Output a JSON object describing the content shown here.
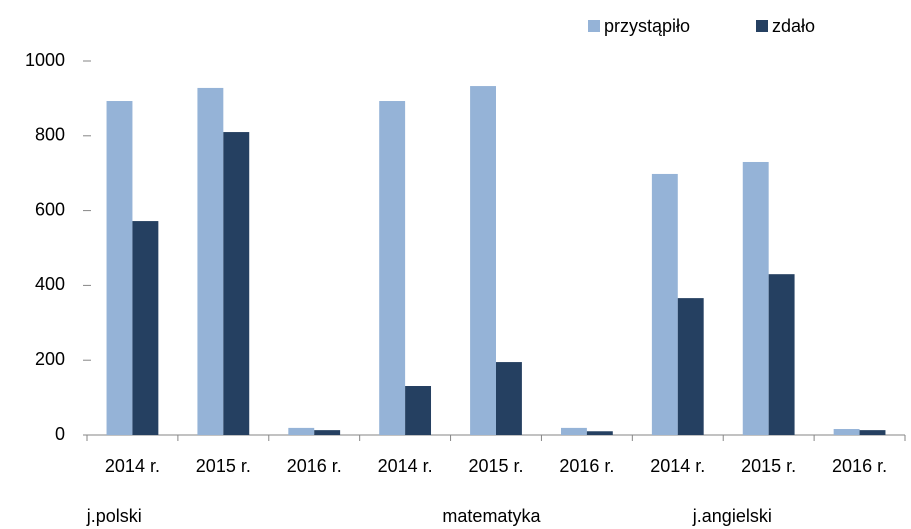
{
  "chart_data": {
    "type": "bar",
    "categories": [
      "2014 r.",
      "2015 r.",
      "2016 r.",
      "2014 r.",
      "2015 r.",
      "2016 r.",
      "2014 r.",
      "2015 r.",
      "2016 r."
    ],
    "group_labels": [
      "j.polski",
      "matematyka",
      "j.angielski"
    ],
    "series": [
      {
        "name": "przystąpiło",
        "color": "#95b3d7",
        "values": [
          893,
          928,
          19,
          893,
          933,
          19,
          698,
          730,
          16
        ]
      },
      {
        "name": "zdało",
        "color": "#254061",
        "values": [
          572,
          810,
          13,
          131,
          195,
          10,
          366,
          430,
          13
        ]
      }
    ],
    "ylim": [
      0,
      1000
    ],
    "yticks": [
      0,
      200,
      400,
      600,
      800,
      1000
    ],
    "grid": false,
    "legend": "top-right"
  }
}
